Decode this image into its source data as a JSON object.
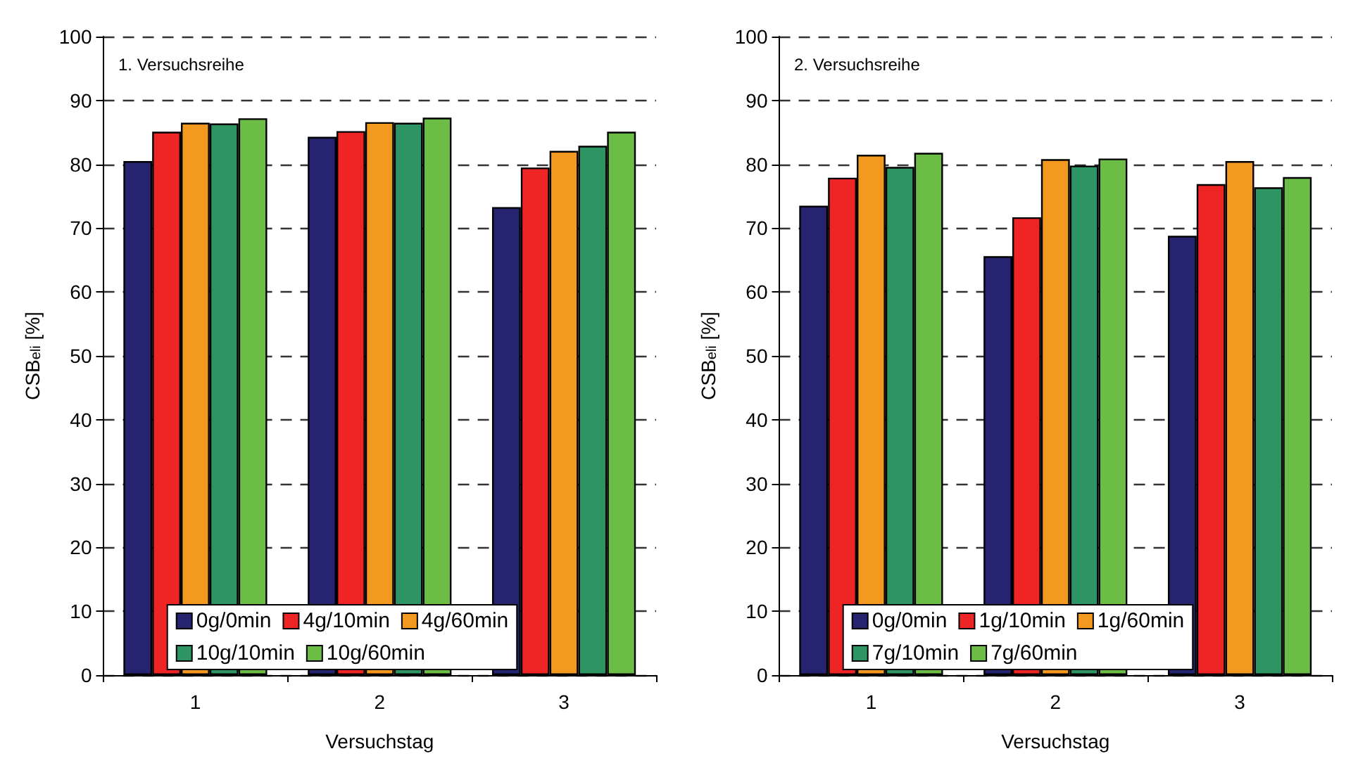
{
  "chart_data": [
    {
      "type": "bar",
      "annotations": [
        "1. Versuchsreihe"
      ],
      "xlabel": "Versuchstag",
      "ylabel": "CSB$_{eli}$ [%]",
      "categories": [
        "1",
        "2",
        "3"
      ],
      "series": [
        {
          "name": "0g/0min",
          "color": "#262470",
          "values": [
            80.5,
            84.3,
            73.3
          ]
        },
        {
          "name": "4g/10min",
          "color": "#ee2524",
          "values": [
            85.1,
            85.2,
            79.5
          ]
        },
        {
          "name": "4g/60min",
          "color": "#f4991f",
          "values": [
            86.5,
            86.6,
            82.1
          ]
        },
        {
          "name": "10g/10min",
          "color": "#2e9464",
          "values": [
            86.4,
            86.5,
            82.9
          ]
        },
        {
          "name": "10g/60min",
          "color": "#6cbd45",
          "values": [
            87.2,
            87.3,
            85.1
          ]
        }
      ],
      "ylim": [
        0,
        100
      ],
      "yticks": [
        0,
        10,
        20,
        30,
        40,
        50,
        60,
        70,
        80,
        90,
        100
      ],
      "grid": "y",
      "legend": "bottom"
    },
    {
      "type": "bar",
      "annotations": [
        "2. Versuchsreihe"
      ],
      "xlabel": "Versuchstag",
      "ylabel": "CSB$_{eli}$ [%]",
      "categories": [
        "1",
        "2",
        "3"
      ],
      "series": [
        {
          "name": "0g/0min",
          "color": "#262470",
          "values": [
            73.5,
            65.6,
            68.8
          ]
        },
        {
          "name": "1g/10min",
          "color": "#ee2524",
          "values": [
            77.9,
            71.7,
            76.9
          ]
        },
        {
          "name": "1g/60min",
          "color": "#f4991f",
          "values": [
            81.5,
            80.8,
            80.5
          ]
        },
        {
          "name": "7g/10min",
          "color": "#2e9464",
          "values": [
            79.6,
            79.8,
            76.4
          ]
        },
        {
          "name": "7g/60min",
          "color": "#6cbd45",
          "values": [
            81.8,
            80.9,
            78.0
          ]
        }
      ],
      "ylim": [
        0,
        100
      ],
      "yticks": [
        0,
        10,
        20,
        30,
        40,
        50,
        60,
        70,
        80,
        90,
        100
      ],
      "grid": "y",
      "legend": "bottom"
    }
  ]
}
